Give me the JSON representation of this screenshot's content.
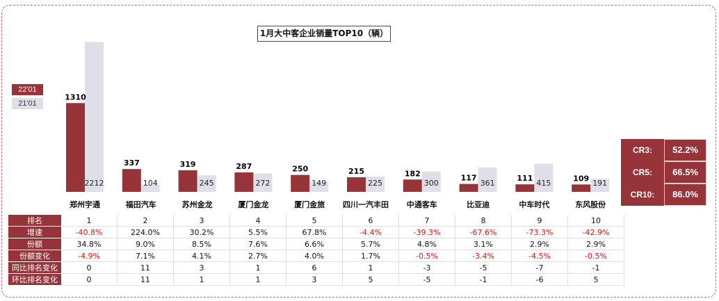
{
  "colors": {
    "series_2022": "#96343a",
    "series_2021": "#dfdfe9",
    "negative": "#e01010",
    "frame": "#d06070"
  },
  "chart_data": {
    "type": "bar",
    "title": "1月大中客企业销量TOP10（辆）",
    "categories": [
      "郑州宇通",
      "福田汽车",
      "苏州金龙",
      "厦门金龙",
      "厦门金旅",
      "四川一汽丰田",
      "中通客车",
      "比亚迪",
      "中车时代",
      "东风股份"
    ],
    "series": [
      {
        "name": "22'01",
        "values": [
          1310,
          337,
          319,
          287,
          250,
          215,
          182,
          117,
          111,
          109
        ]
      },
      {
        "name": "21'01",
        "values": [
          2212,
          104,
          245,
          272,
          149,
          225,
          300,
          361,
          415,
          191
        ]
      }
    ],
    "legend": "left",
    "grid": false
  },
  "table": {
    "rows": [
      {
        "label": "排名",
        "values": [
          "1",
          "2",
          "3",
          "4",
          "5",
          "6",
          "7",
          "8",
          "9",
          "10"
        ]
      },
      {
        "label": "增速",
        "values": [
          "-40.8%",
          "224.0%",
          "30.2%",
          "5.5%",
          "67.8%",
          "-4.4%",
          "-39.3%",
          "-67.6%",
          "-73.3%",
          "-42.9%"
        ]
      },
      {
        "label": "份额",
        "values": [
          "34.8%",
          "9.0%",
          "8.5%",
          "7.6%",
          "6.6%",
          "5.7%",
          "4.8%",
          "3.1%",
          "2.9%",
          "2.9%"
        ]
      },
      {
        "label": "份额变化",
        "values": [
          "-4.9%",
          "7.1%",
          "4.1%",
          "2.7%",
          "4.0%",
          "1.7%",
          "-0.5%",
          "-3.4%",
          "-4.5%",
          "-0.5%"
        ]
      },
      {
        "label": "同比排名变化",
        "values": [
          "0",
          "11",
          "3",
          "1",
          "6",
          "1",
          "-3",
          "-5",
          "-7",
          "-1"
        ]
      },
      {
        "label": "环比排名变化",
        "values": [
          "0",
          "11",
          "1",
          "1",
          "3",
          "5",
          "-5",
          "-1",
          "-6",
          "5"
        ]
      }
    ]
  },
  "concentration": [
    {
      "label": "CR3:",
      "value": "52.2%"
    },
    {
      "label": "CR5:",
      "value": "66.5%"
    },
    {
      "label": "CR10:",
      "value": "86.0%"
    }
  ]
}
